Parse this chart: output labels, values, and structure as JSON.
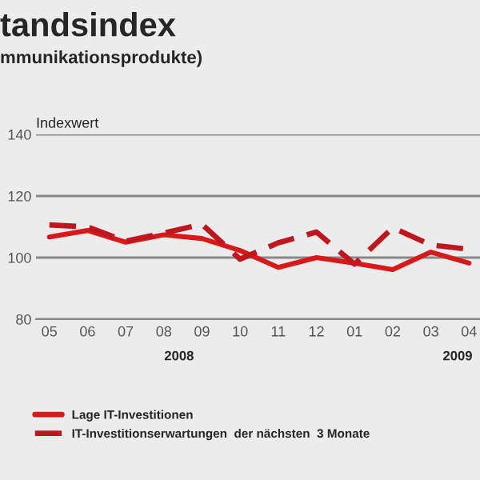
{
  "chart_data": {
    "type": "line",
    "title": "tandsindex",
    "subtitle": "mmunikationsprodukte)",
    "ylabel": "Indexwert",
    "categories": [
      "05",
      "06",
      "07",
      "08",
      "09",
      "10",
      "11",
      "12",
      "01",
      "02",
      "03",
      "04"
    ],
    "series": [
      {
        "name": "Lage IT-Investitionen",
        "color": "#d7191c",
        "line_style": "solid",
        "values": [
          106.7,
          108.8,
          105,
          107.4,
          106.2,
          102.3,
          96.8,
          100,
          98.2,
          96.1,
          101.8,
          98.2
        ]
      },
      {
        "name": "IT-Investitionserwartungen  der nächsten  3 Monate",
        "color": "#c0171f",
        "line_style": "dashed",
        "values": [
          110.6,
          110,
          105.3,
          108,
          110.8,
          99.5,
          104.8,
          108.3,
          97.9,
          109.7,
          104.1,
          102.7
        ]
      }
    ],
    "ylim": [
      80,
      140
    ],
    "yticks": [
      80,
      100,
      120,
      140
    ],
    "grid": "y",
    "legend": "bottom",
    "annotations": [
      "2008",
      "2009"
    ]
  }
}
